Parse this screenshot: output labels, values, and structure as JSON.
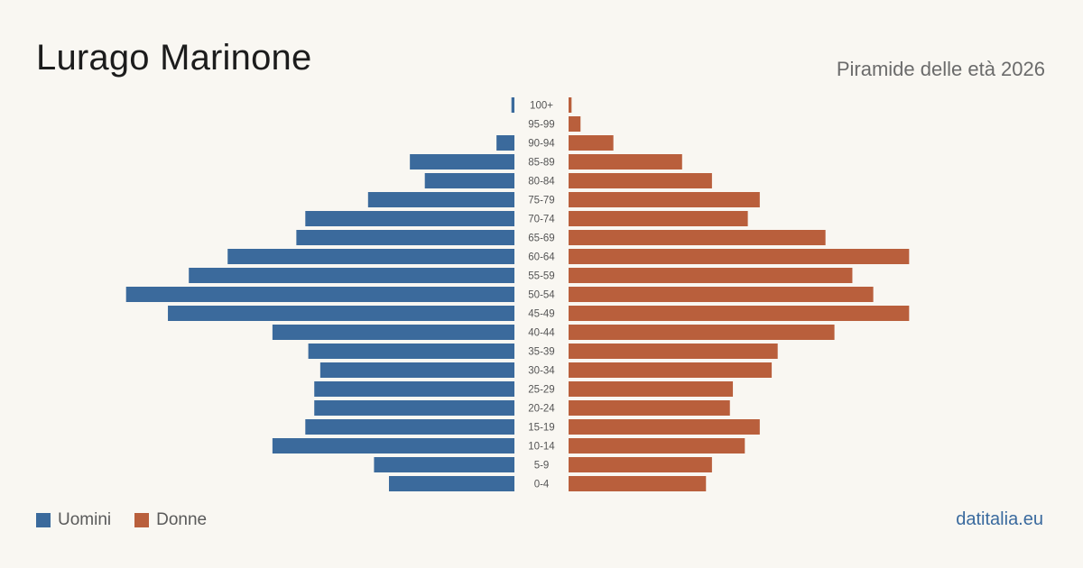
{
  "header": {
    "title": "Lurago Marinone",
    "subtitle": "Piramide delle età 2026"
  },
  "legend": {
    "men_label": "Uomini",
    "women_label": "Donne"
  },
  "footer": {
    "brand": "datitalia.eu"
  },
  "colors": {
    "men": "#3b6a9c",
    "women": "#b95f3c",
    "background": "#f9f7f2"
  },
  "chart_data": {
    "type": "bar",
    "orientation": "horizontal-pyramid",
    "categories": [
      "100+",
      "95-99",
      "90-94",
      "85-89",
      "80-84",
      "75-79",
      "70-74",
      "65-69",
      "60-64",
      "55-59",
      "50-54",
      "45-49",
      "40-44",
      "35-39",
      "30-34",
      "25-29",
      "20-24",
      "15-19",
      "10-14",
      "5-9",
      "0-4"
    ],
    "series": [
      {
        "name": "Uomini",
        "values": [
          1,
          0,
          6,
          35,
          30,
          49,
          70,
          73,
          96,
          109,
          130,
          116,
          81,
          69,
          65,
          67,
          67,
          70,
          81,
          47,
          42
        ]
      },
      {
        "name": "Donne",
        "values": [
          1,
          4,
          15,
          38,
          48,
          64,
          60,
          86,
          114,
          95,
          102,
          114,
          89,
          70,
          68,
          55,
          54,
          64,
          59,
          48,
          46
        ]
      }
    ],
    "grid": false
  }
}
